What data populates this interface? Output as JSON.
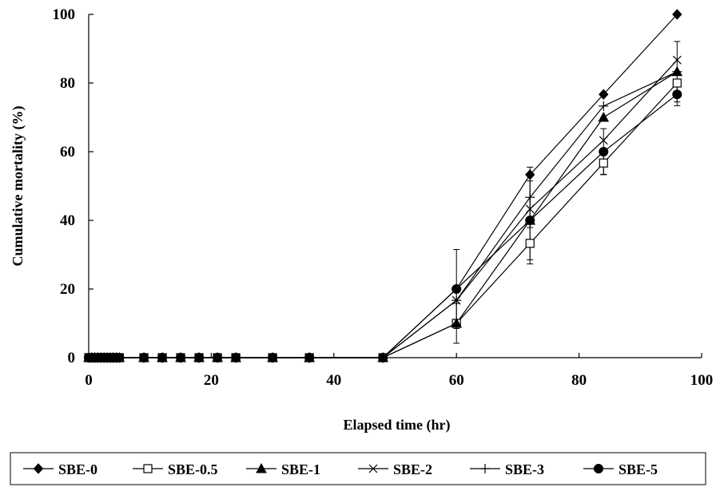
{
  "chart_data": {
    "type": "line",
    "title": "",
    "xlabel": "Elapsed time (hr)",
    "ylabel": "Cumulative mortality (%)",
    "xlim": [
      0,
      100
    ],
    "ylim": [
      0,
      100
    ],
    "xticks": [
      0,
      20,
      40,
      60,
      80,
      100
    ],
    "yticks": [
      0,
      20,
      40,
      60,
      80,
      100
    ],
    "grid": false,
    "legend_position": "bottom",
    "x": [
      0,
      0.5,
      1,
      1.5,
      2,
      2.5,
      3,
      3.5,
      4,
      4.5,
      5,
      9,
      12,
      15,
      18,
      21,
      24,
      30,
      36,
      48,
      60,
      72,
      84,
      96
    ],
    "series": [
      {
        "name": "SBE-0",
        "marker": "diamond-filled",
        "values": [
          0,
          0,
          0,
          0,
          0,
          0,
          0,
          0,
          0,
          0,
          0,
          0,
          0,
          0,
          0,
          0,
          0,
          0,
          0,
          0,
          20,
          53.3,
          76.7,
          100
        ],
        "errors": [
          0,
          0,
          0,
          0,
          0,
          0,
          0,
          0,
          0,
          0,
          0,
          0,
          0,
          0,
          0,
          0,
          0,
          0,
          0,
          0,
          0,
          0,
          0,
          0
        ]
      },
      {
        "name": "SBE-0.5",
        "marker": "square-open",
        "values": [
          0,
          0,
          0,
          0,
          0,
          0,
          0,
          0,
          0,
          0,
          0,
          0,
          0,
          0,
          0,
          0,
          0,
          0,
          0,
          0,
          10,
          33.3,
          56.7,
          80
        ],
        "errors": [
          0,
          0,
          0,
          0,
          0,
          0,
          0,
          0,
          0,
          0,
          0,
          0,
          0,
          0,
          0,
          0,
          0,
          0,
          0,
          0,
          0,
          6,
          3.3,
          0
        ]
      },
      {
        "name": "SBE-1",
        "marker": "triangle-filled",
        "values": [
          0,
          0,
          0,
          0,
          0,
          0,
          0,
          0,
          0,
          0,
          0,
          0,
          0,
          0,
          0,
          0,
          0,
          0,
          0,
          0,
          10,
          40,
          70,
          83.3
        ],
        "errors": [
          0,
          0,
          0,
          0,
          0,
          0,
          0,
          0,
          0,
          0,
          0,
          0,
          0,
          0,
          0,
          0,
          0,
          0,
          0,
          0,
          5.8,
          0,
          0,
          0
        ]
      },
      {
        "name": "SBE-2",
        "marker": "x",
        "values": [
          0,
          0,
          0,
          0,
          0,
          0,
          0,
          0,
          0,
          0,
          0,
          0,
          0,
          0,
          0,
          0,
          0,
          0,
          0,
          0,
          16.7,
          43.3,
          63.3,
          86.7
        ],
        "errors": [
          0,
          0,
          0,
          0,
          0,
          0,
          0,
          0,
          0,
          0,
          0,
          0,
          0,
          0,
          0,
          0,
          0,
          0,
          0,
          0,
          0,
          0,
          0,
          0
        ]
      },
      {
        "name": "SBE-3",
        "marker": "plus",
        "values": [
          0,
          0,
          0,
          0,
          0,
          0,
          0,
          0,
          0,
          0,
          0,
          0,
          0,
          0,
          0,
          0,
          0,
          0,
          0,
          0,
          16.7,
          46.7,
          73.3,
          83.3
        ],
        "errors": [
          0,
          0,
          0,
          0,
          0,
          0,
          0,
          0,
          0,
          0,
          0,
          0,
          0,
          0,
          0,
          0,
          0,
          0,
          0,
          0,
          0,
          8.8,
          0,
          8.8
        ]
      },
      {
        "name": "SBE-5",
        "marker": "circle-filled",
        "values": [
          0,
          0,
          0,
          0,
          0,
          0,
          0,
          0,
          0,
          0,
          0,
          0,
          0,
          0,
          0,
          0,
          0,
          0,
          0,
          0,
          20,
          40,
          60,
          76.7
        ],
        "errors": [
          0,
          0,
          0,
          0,
          0,
          0,
          0,
          0,
          0,
          0,
          0,
          0,
          0,
          0,
          0,
          0,
          0,
          0,
          0,
          0,
          11.5,
          11.5,
          6.7,
          3.3
        ]
      }
    ]
  }
}
